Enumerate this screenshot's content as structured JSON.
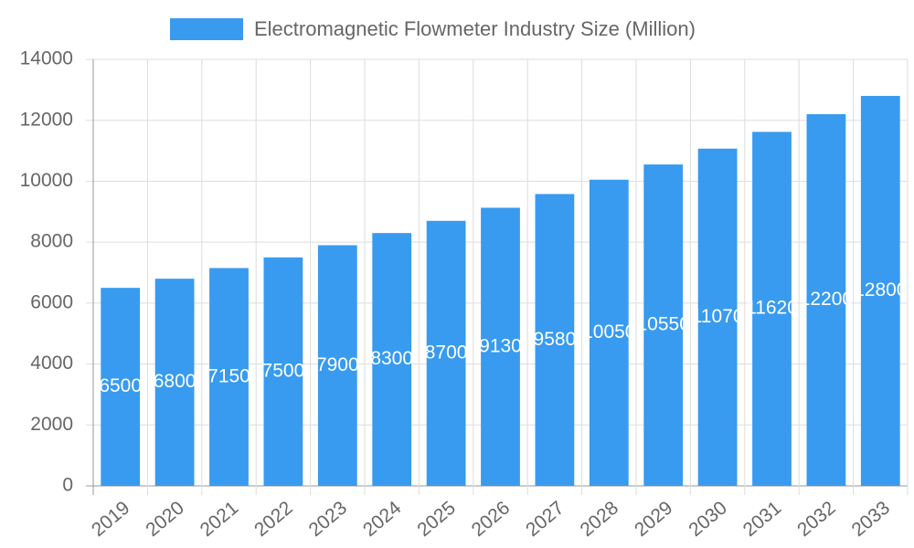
{
  "chart_data": {
    "type": "bar",
    "categories": [
      "2019",
      "2020",
      "2021",
      "2022",
      "2023",
      "2024",
      "2025",
      "2026",
      "2027",
      "2028",
      "2029",
      "2030",
      "2031",
      "2032",
      "2033"
    ],
    "series": [
      {
        "name": "Electromagnetic Flowmeter Industry Size (Million)",
        "color": "#389bef",
        "values": [
          6500,
          6800,
          7150,
          7500,
          7900,
          8300,
          8700,
          9130,
          9580,
          10050,
          10550,
          11070,
          11620,
          12200,
          12800
        ]
      }
    ],
    "ylim": [
      0,
      14000
    ],
    "yticks": [
      0,
      2000,
      4000,
      6000,
      8000,
      10000,
      12000,
      14000
    ],
    "grid": true,
    "legend": "top"
  }
}
